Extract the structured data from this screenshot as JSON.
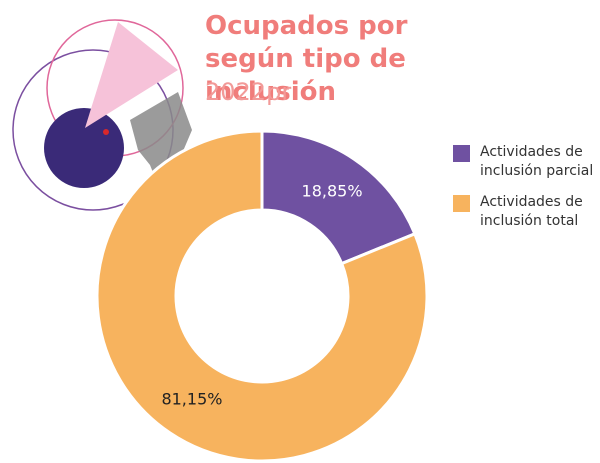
{
  "chart_data": {
    "type": "donut",
    "title": "Ocupados por según tipo de inclusión",
    "subtitle": "2022pr",
    "categories": [
      "Actividades de inclusión parcial",
      "Actividades de inclusión total"
    ],
    "values": [
      18.85,
      81.15
    ],
    "value_labels": [
      "18,85%",
      "81,15%"
    ],
    "colors": [
      "#6f51a1",
      "#f7b35e"
    ],
    "legend": "right"
  }
}
